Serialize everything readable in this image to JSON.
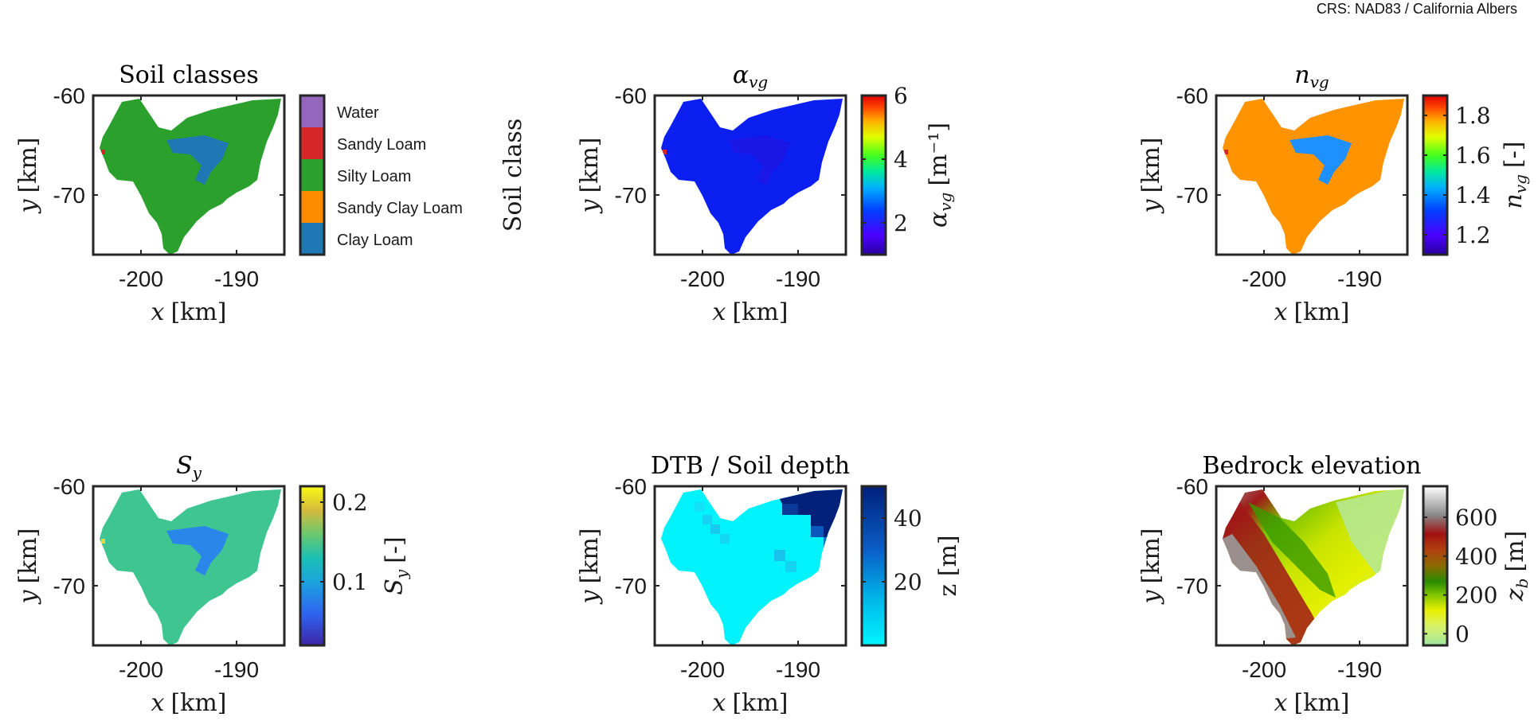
{
  "crs_note": "CRS: NAD83 / California Albers",
  "colors": {
    "water": "#9467bd",
    "sandy_loam": "#d62728",
    "silty_loam": "#2ca02c",
    "sandy_clay_loam": "#ff8c00",
    "clay_loam": "#1f77b4"
  },
  "chart_data": [
    {
      "type": "heatmap",
      "title": "Soil classes",
      "xlabel": "x [km]",
      "ylabel": "y [km]",
      "xlim": [
        -205,
        -185
      ],
      "ylim": [
        -76,
        -60
      ],
      "xticks": [
        "-200",
        "-190"
      ],
      "yticks": [
        "-60",
        "-70"
      ],
      "colorbar": {
        "kind": "categorical",
        "label": "Soil class",
        "classes": [
          "Water",
          "Sandy Loam",
          "Silty Loam",
          "Sandy Clay Loam",
          "Clay Loam"
        ],
        "class_colors": [
          "#9467bd",
          "#d62728",
          "#2ca02c",
          "#ff8c00",
          "#1f77b4"
        ]
      },
      "dominant_class": "Silty Loam",
      "secondary_class": "Clay Loam"
    },
    {
      "type": "heatmap",
      "title": "αvg",
      "title_main": "α",
      "title_sub": "vg",
      "xlabel": "x [km]",
      "ylabel": "y [km]",
      "xlim": [
        -205,
        -185
      ],
      "ylim": [
        -76,
        -60
      ],
      "xticks": [
        "-200",
        "-190"
      ],
      "yticks": [
        "-60",
        "-70"
      ],
      "colorbar": {
        "kind": "continuous",
        "colormap": "jet",
        "range": [
          1,
          6
        ],
        "ticks": [
          "2",
          "4",
          "6"
        ],
        "tick_values": [
          2,
          4,
          6
        ],
        "label": "αvg [m⁻¹]",
        "label_main": "α",
        "label_sub": "vg",
        "label_unit": "[m⁻¹]"
      },
      "field_value_dominant": 1.6,
      "field_value_secondary": 1.9
    },
    {
      "type": "heatmap",
      "title": "nvg",
      "title_main": "n",
      "title_sub": "vg",
      "xlabel": "x [km]",
      "ylabel": "y [km]",
      "xlim": [
        -205,
        -185
      ],
      "ylim": [
        -76,
        -60
      ],
      "xticks": [
        "-200",
        "-190"
      ],
      "yticks": [
        "-60",
        "-70"
      ],
      "colorbar": {
        "kind": "continuous",
        "colormap": "jet",
        "range": [
          1.1,
          1.9
        ],
        "ticks": [
          "1.2",
          "1.4",
          "1.6",
          "1.8"
        ],
        "tick_values": [
          1.2,
          1.4,
          1.6,
          1.8
        ],
        "label": "nvg [-]",
        "label_main": "n",
        "label_sub": "vg",
        "label_unit": "[-]"
      },
      "field_value_dominant": 1.64,
      "field_value_secondary": 1.41
    },
    {
      "type": "heatmap",
      "title": "Sy",
      "title_main": "S",
      "title_sub": "y",
      "xlabel": "x [km]",
      "ylabel": "y [km]",
      "xlim": [
        -205,
        -185
      ],
      "ylim": [
        -76,
        -60
      ],
      "xticks": [
        "-200",
        "-190"
      ],
      "yticks": [
        "-60",
        "-70"
      ],
      "colorbar": {
        "kind": "continuous",
        "colormap": "parula",
        "range": [
          0.02,
          0.22
        ],
        "ticks": [
          "0.1",
          "0.2"
        ],
        "tick_values": [
          0.1,
          0.2
        ],
        "label": "Sy [-]",
        "label_main": "S",
        "label_sub": "y",
        "label_unit": "[-]"
      },
      "field_value_dominant": 0.15,
      "field_value_secondary": 0.09
    },
    {
      "type": "heatmap",
      "title": "DTB / Soil depth",
      "xlabel": "x [km]",
      "ylabel": "y [km]",
      "xlim": [
        -205,
        -185
      ],
      "ylim": [
        -76,
        -60
      ],
      "xticks": [
        "-200",
        "-190"
      ],
      "yticks": [
        "-60",
        "-70"
      ],
      "colorbar": {
        "kind": "continuous",
        "colormap": "cyan-navy",
        "range": [
          0,
          50
        ],
        "ticks": [
          "20",
          "40"
        ],
        "tick_values": [
          20,
          40
        ],
        "label": "z [m]",
        "label_unit": "z [m]"
      },
      "field_value_dominant": 2,
      "field_value_max": 50
    },
    {
      "type": "heatmap",
      "title": "Bedrock elevation",
      "xlabel": "x [km]",
      "ylabel": "y [km]",
      "xlim": [
        -205,
        -185
      ],
      "ylim": [
        -76,
        -60
      ],
      "xticks": [
        "-200",
        "-190"
      ],
      "yticks": [
        "-60",
        "-70"
      ],
      "colorbar": {
        "kind": "continuous",
        "colormap": "demcmap",
        "range": [
          -60,
          760
        ],
        "ticks": [
          "0",
          "200",
          "400",
          "600"
        ],
        "tick_values": [
          0,
          200,
          400,
          600
        ],
        "label": "zb [m]",
        "label_main": "z",
        "label_sub": "b",
        "label_unit": "[m]"
      },
      "field_value_min": -40,
      "field_value_max": 740
    }
  ]
}
